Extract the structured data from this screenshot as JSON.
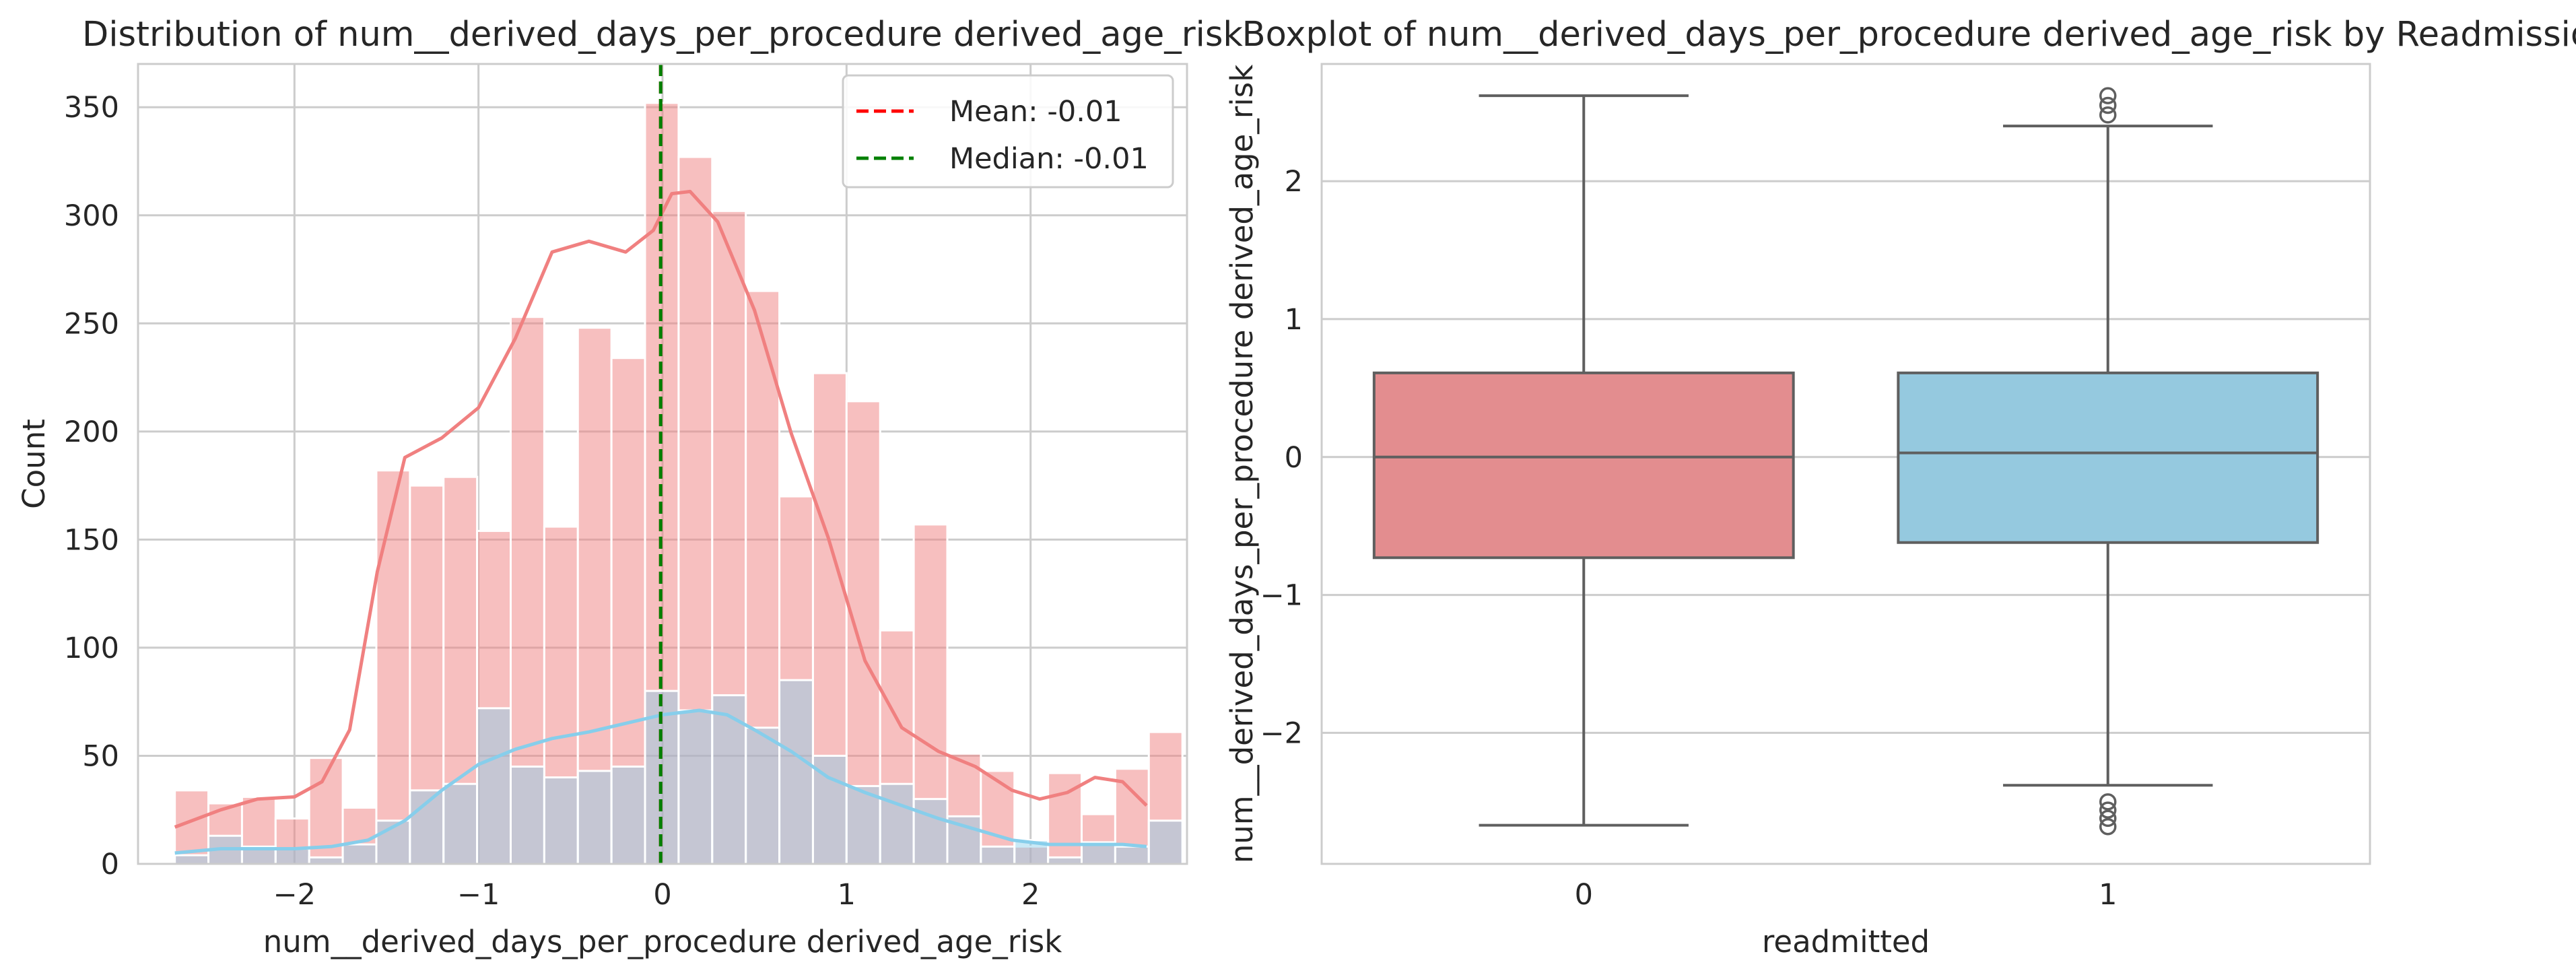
{
  "chart_data": [
    {
      "type": "histogram",
      "title": "Distribution of num__derived_days_per_procedure derived_age_risk",
      "xlabel": "num__derived_days_per_procedure derived_age_risk",
      "ylabel": "Count",
      "xlim": [
        -2.85,
        2.85
      ],
      "ylim": [
        0,
        370
      ],
      "x_ticks": [
        -2,
        -1,
        0,
        1,
        2
      ],
      "x_tick_labels": [
        "−2",
        "−1",
        "0",
        "1",
        "2"
      ],
      "y_ticks": [
        0,
        50,
        100,
        150,
        200,
        250,
        300,
        350
      ],
      "grid": true,
      "bin_start": -2.65,
      "bin_width": 0.1825,
      "series": [
        {
          "name": "",
          "color": "#f08080",
          "counts": [
            34,
            28,
            31,
            21,
            49,
            26,
            182,
            175,
            179,
            154,
            253,
            156,
            248,
            234,
            352,
            327,
            302,
            265,
            170,
            227,
            214,
            108,
            157,
            51,
            43,
            8,
            42,
            23,
            44,
            61
          ],
          "kde_x": [
            -2.65,
            -2.4,
            -2.2,
            -2.0,
            -1.85,
            -1.7,
            -1.55,
            -1.4,
            -1.2,
            -1.0,
            -0.8,
            -0.6,
            -0.4,
            -0.2,
            -0.05,
            0.05,
            0.15,
            0.3,
            0.5,
            0.7,
            0.9,
            1.1,
            1.3,
            1.5,
            1.7,
            1.9,
            2.05,
            2.2,
            2.35,
            2.5,
            2.63
          ],
          "kde_y": [
            17,
            25,
            30,
            31,
            38,
            62,
            135,
            188,
            197,
            211,
            243,
            283,
            288,
            283,
            293,
            310,
            311,
            297,
            256,
            199,
            151,
            94,
            63,
            52,
            45,
            34,
            30,
            33,
            40,
            38,
            27
          ]
        },
        {
          "name": "",
          "color": "#87ceeb",
          "counts": [
            4,
            13,
            8,
            7,
            3,
            9,
            20,
            34,
            37,
            72,
            45,
            40,
            43,
            45,
            80,
            71,
            78,
            63,
            85,
            50,
            36,
            37,
            30,
            22,
            8,
            11,
            3,
            10,
            8,
            20
          ],
          "kde_x": [
            -2.65,
            -2.4,
            -2.2,
            -2.0,
            -1.8,
            -1.6,
            -1.4,
            -1.2,
            -1.0,
            -0.8,
            -0.6,
            -0.4,
            -0.2,
            0.0,
            0.2,
            0.35,
            0.5,
            0.7,
            0.9,
            1.1,
            1.3,
            1.5,
            1.7,
            1.9,
            2.1,
            2.3,
            2.5,
            2.63
          ],
          "kde_y": [
            5,
            7,
            7,
            7,
            8,
            11,
            20,
            34,
            46,
            53,
            58,
            61,
            65,
            69,
            71,
            69,
            62,
            52,
            40,
            33,
            27,
            21,
            16,
            11,
            9,
            9,
            9,
            8
          ]
        }
      ],
      "vlines": [
        {
          "label": "Mean: -0.01",
          "x": -0.01,
          "color": "#ff0000",
          "style": "dashed"
        },
        {
          "label": "Median: -0.01",
          "x": -0.01,
          "color": "#008000",
          "style": "dashed"
        }
      ],
      "legend": "top-right"
    },
    {
      "type": "box",
      "title": "Boxplot of num__derived_days_per_procedure derived_age_risk by Readmission",
      "xlabel": "readmitted",
      "ylabel": "num__derived_days_per_procedure derived_age_risk",
      "categories": [
        "0",
        "1"
      ],
      "ylim": [
        -2.95,
        2.85
      ],
      "y_ticks": [
        -2,
        -1,
        0,
        1,
        2
      ],
      "y_tick_labels": [
        "−2",
        "−1",
        "0",
        "1",
        "2"
      ],
      "grid": true,
      "boxes": [
        {
          "category": "0",
          "color": "#e38d8f",
          "whisker_low": -2.67,
          "q1": -0.73,
          "median": 0.0,
          "q3": 0.61,
          "whisker_high": 2.62,
          "outliers": []
        },
        {
          "category": "1",
          "color": "#95c9df",
          "whisker_low": -2.38,
          "q1": -0.62,
          "median": 0.03,
          "q3": 0.61,
          "whisker_high": 2.4,
          "outliers": [
            -2.5,
            -2.56,
            -2.62,
            -2.68,
            2.48,
            2.55,
            2.62
          ]
        }
      ]
    }
  ]
}
